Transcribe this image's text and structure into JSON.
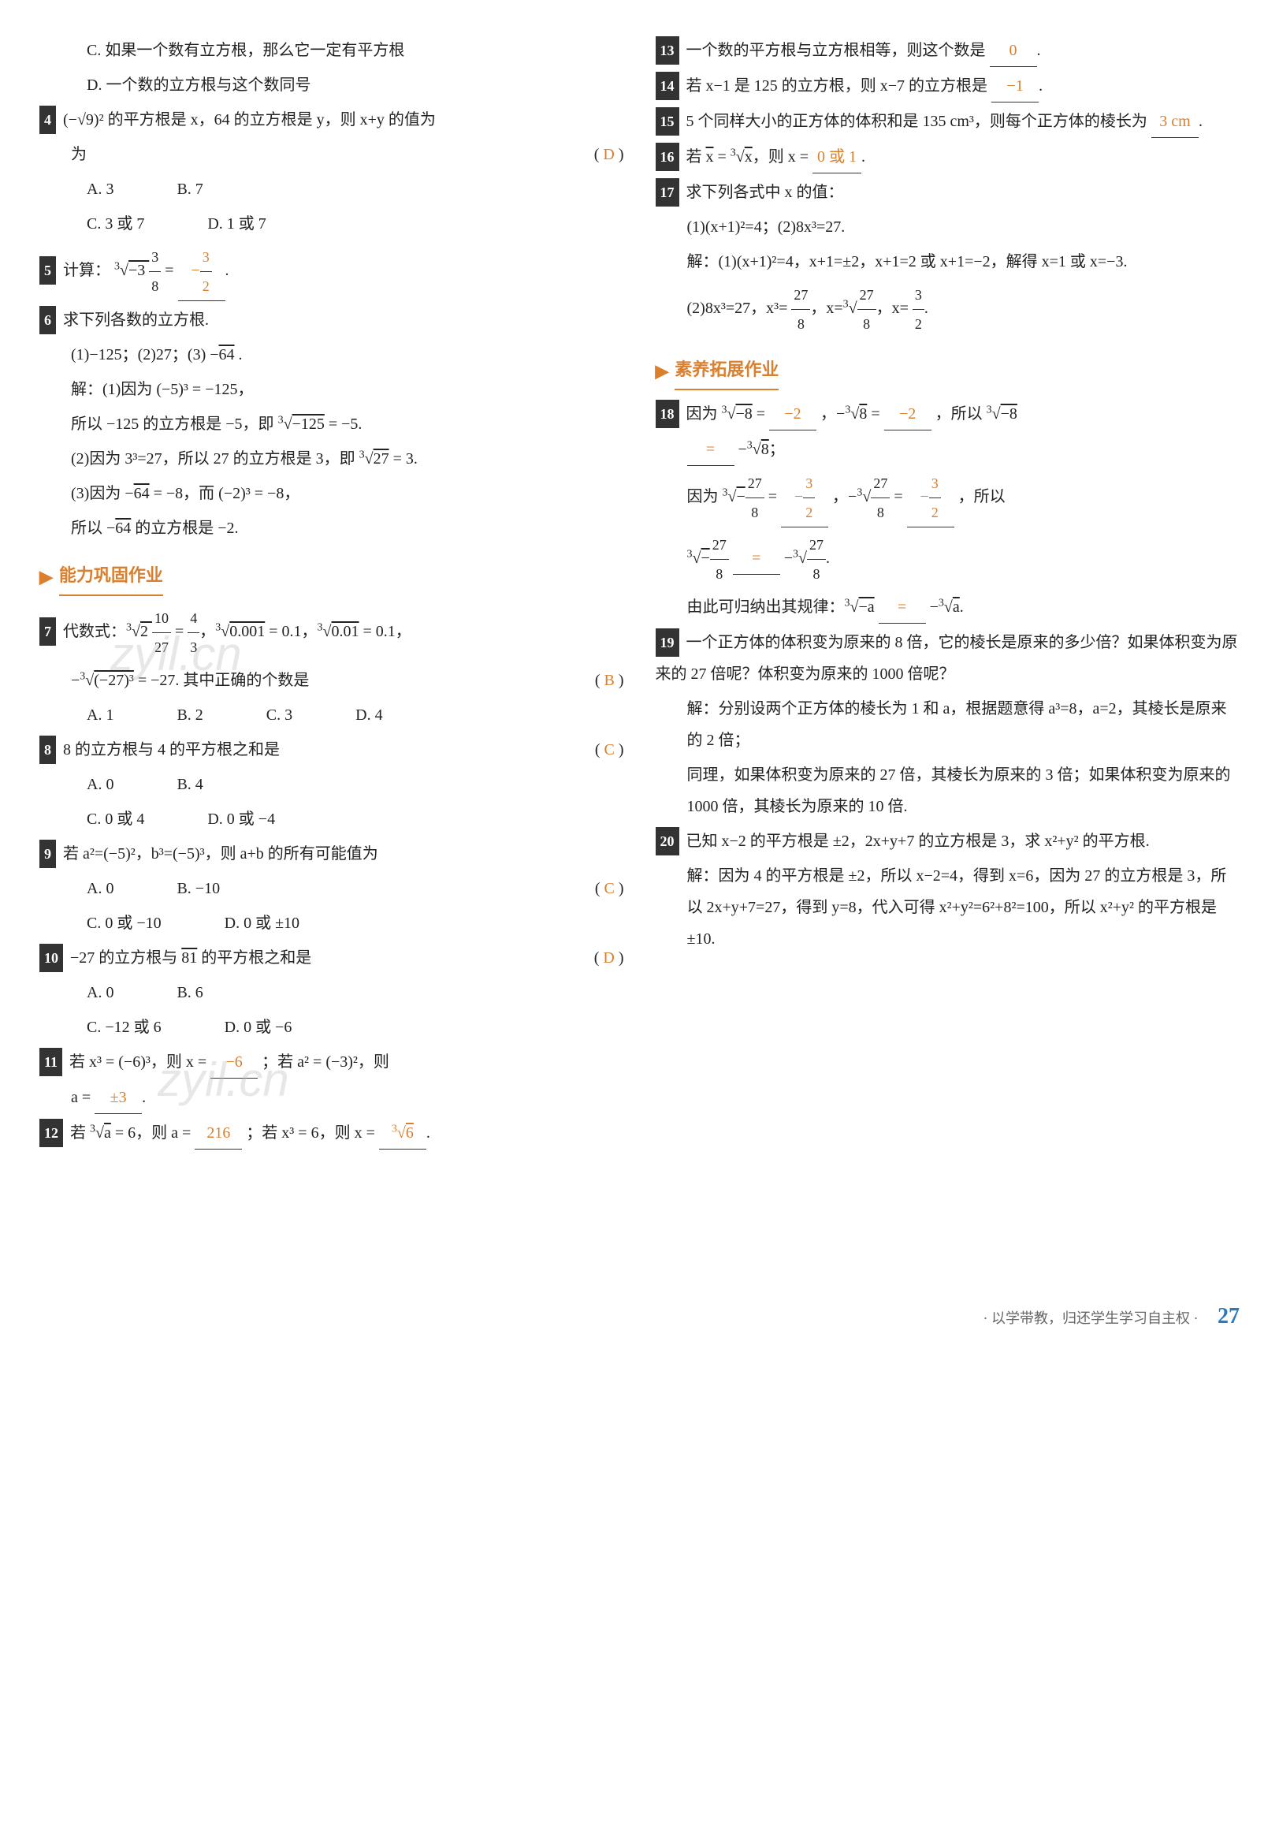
{
  "left": {
    "q3c": "C. 如果一个数有立方根，那么它一定有平方根",
    "q3d": "D. 一个数的立方根与这个数同号",
    "q4": "(−√9)² 的平方根是 x，64 的立方根是 y，则 x+y 的值为",
    "q4ans": "D",
    "q4a": "A. 3",
    "q4b": "B. 7",
    "q4c": "C. 3 或 7",
    "q4d": "D. 1 或 7",
    "q5_pre": "计算：",
    "q5_expr": "∛(−3 3/8) =",
    "q5_ans": "−3/2",
    "q6": "求下列各数的立方根.",
    "q6_sub": "(1)−125；(2)27；(3) −√64 .",
    "q6_s1": "解：(1)因为 (−5)³ = −125，",
    "q6_s1b": "所以 −125 的立方根是 −5，即 ∛(−125) = −5.",
    "q6_s2": "(2)因为 3³=27，所以 27 的立方根是 3，即 ∛27 = 3.",
    "q6_s3": "(3)因为 −√64 = −8，而 (−2)³ = −8，",
    "q6_s3b": "所以 −√64 的立方根是 −2.",
    "sec1": "能力巩固作业",
    "q7": "代数式：∛(2 10/27) = 4/3，∛0.001 = 0.1，∛0.01 = 0.1，",
    "q7b": "−∛((−27)³) = −27. 其中正确的个数是",
    "q7ans": "B",
    "q7a": "A. 1",
    "q7bb": "B. 2",
    "q7c": "C. 3",
    "q7d": "D. 4",
    "q8": "8 的立方根与 4 的平方根之和是",
    "q8ans": "C",
    "q8a": "A. 0",
    "q8b": "B. 4",
    "q8c": "C. 0 或 4",
    "q8d": "D. 0 或 −4",
    "q9": "若 a²=(−5)²，b³=(−5)³，则 a+b 的所有可能值为",
    "q9ans": "C",
    "q9a": "A. 0",
    "q9b": "B. −10",
    "q9c": "C. 0 或 −10",
    "q9d": "D. 0 或 ±10",
    "q10": "−27 的立方根与 √81 的平方根之和是",
    "q10ans": "D",
    "q10a": "A. 0",
    "q10b": "B. 6",
    "q10c": "C. −12 或 6",
    "q10d": "D. 0 或 −6",
    "q11a": "若 x³ = (−6)³，则 x =",
    "q11ans1": "−6",
    "q11b": "；若 a² = (−3)²，则",
    "q11c": "a =",
    "q11ans2": "±3",
    "q12a": "若 ∛a = 6，则 a =",
    "q12ans1": "216",
    "q12b": "；若 x³ = 6，则 x =",
    "q12ans2": "∛6"
  },
  "right": {
    "q13a": "一个数的平方根与立方根相等，则这个数是",
    "q13ans": "0",
    "q14a": "若 x−1 是 125 的立方根，则 x−7 的立方根是",
    "q14ans": "−1",
    "q15a": "5 个同样大小的正方体的体积和是 135 cm³，则每个正方体的棱长为",
    "q15ans": "3 cm",
    "q16a": "若 √x = ∛x，则 x =",
    "q16ans": "0 或 1",
    "q17": "求下列各式中 x 的值：",
    "q17sub": "(1)(x+1)²=4；(2)8x³=27.",
    "q17s1": "解：(1)(x+1)²=4，x+1=±2，x+1=2 或 x+1=−2，解得 x=1 或 x=−3.",
    "q17s2": "(2)8x³=27，x³= 27/8，x=∛(27/8)，x= 3/2.",
    "sec2": "素养拓展作业",
    "q18a": "因为 ∛(−8) =",
    "q18ans1": "−2",
    "q18b": "，−∛8 =",
    "q18ans2": "−2",
    "q18c": "，所以 ∛(−8)",
    "q18d": "",
    "q18ans3": "=",
    "q18e": "−∛8；",
    "q18f": "因为 ∛(−27/8) =",
    "q18ans4": "−3/2",
    "q18g": "，−∛(27/8) =",
    "q18ans5": "−3/2",
    "q18h": "，所以",
    "q18i": "∛(−27/8)",
    "q18ans6": "=",
    "q18j": "−∛(27/8).",
    "q18k": "由此可归纳出其规律：∛(−a)",
    "q18ans7": "=",
    "q18l": "−∛a.",
    "q19": "一个正方体的体积变为原来的 8 倍，它的棱长是原来的多少倍？如果体积变为原来的 27 倍呢？体积变为原来的 1000 倍呢？",
    "q19s1": "解：分别设两个正方体的棱长为 1 和 a，根据题意得 a³=8，a=2，其棱长是原来的 2 倍；",
    "q19s2": "同理，如果体积变为原来的 27 倍，其棱长为原来的 3 倍；如果体积变为原来的 1000 倍，其棱长为原来的 10 倍.",
    "q20": "已知 x−2 的平方根是 ±2，2x+y+7 的立方根是 3，求 x²+y² 的平方根.",
    "q20s": "解：因为 4 的平方根是 ±2，所以 x−2=4，得到 x=6，因为 27 的立方根是 3，所以 2x+y+7=27，得到 y=8，代入可得 x²+y²=6²+8²=100，所以 x²+y² 的平方根是 ±10."
  },
  "footer": {
    "motto": "· 以学带教，归还学生学习自主权 ·",
    "page": "27"
  },
  "watermark": "zyil.cn"
}
